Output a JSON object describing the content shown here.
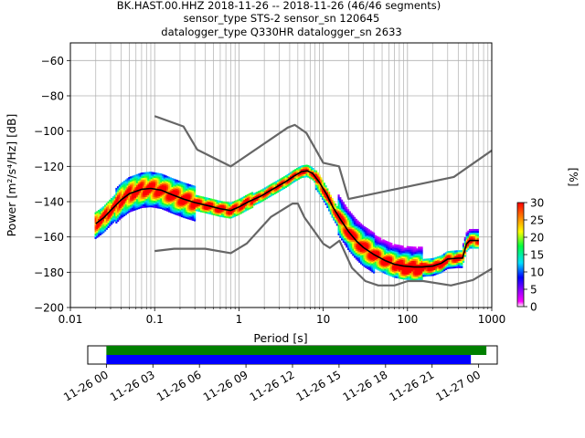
{
  "chart_data": [
    {
      "type": "heatmap",
      "title_lines": [
        "BK.HAST.00.HHZ   2018-11-26 -- 2018-11-26  (46/46 segments)",
        "sensor_type STS-2 sensor_sn 120645",
        "datalogger_type Q330HR datalogger_sn 2633"
      ],
      "xlabel": "Period [s]",
      "ylabel": "Power [m²/s⁴/Hz] [dB]",
      "x_scale": "log",
      "xlim": [
        0.01,
        1000
      ],
      "ylim": [
        -200,
        -50
      ],
      "grid": true,
      "x_ticks": [
        0.01,
        0.1,
        1,
        10,
        100,
        1000
      ],
      "x_tick_labels": [
        "0.01",
        "0.1",
        "1",
        "10",
        "100",
        "1000"
      ],
      "y_ticks": [
        -200,
        -180,
        -160,
        -140,
        -120,
        -100,
        -80,
        -60
      ],
      "y_tick_labels": [
        "−200",
        "−180",
        "−160",
        "−140",
        "−120",
        "−100",
        "−80",
        "−60"
      ],
      "colorbar": {
        "label": "[%]",
        "range": [
          0,
          30
        ],
        "ticks": [
          0,
          5,
          10,
          15,
          20,
          25,
          30
        ],
        "tick_labels": [
          "0",
          "5",
          "10",
          "15",
          "20",
          "25",
          "30"
        ]
      },
      "noise_models": [
        {
          "name": "high",
          "points": [
            [
              0.1,
              -91.5
            ],
            [
              0.22,
              -97.4
            ],
            [
              0.32,
              -110.5
            ],
            [
              0.8,
              -120
            ],
            [
              3.8,
              -98
            ],
            [
              4.6,
              -96.5
            ],
            [
              6.3,
              -101
            ],
            [
              10,
              -118
            ],
            [
              15.4,
              -120
            ],
            [
              20,
              -138.5
            ],
            [
              354.8,
              -126
            ],
            [
              1000,
              -111
            ]
          ]
        },
        {
          "name": "low",
          "points": [
            [
              0.1,
              -168
            ],
            [
              0.17,
              -166.7
            ],
            [
              0.4,
              -166.7
            ],
            [
              0.8,
              -169.2
            ],
            [
              1.24,
              -163.7
            ],
            [
              2.4,
              -148.6
            ],
            [
              4.3,
              -141.1
            ],
            [
              5,
              -141.1
            ],
            [
              6,
              -149
            ],
            [
              10,
              -163.8
            ],
            [
              12,
              -166.2
            ],
            [
              15.6,
              -162.1
            ],
            [
              21.9,
              -177.5
            ],
            [
              31.6,
              -185
            ],
            [
              45,
              -187.5
            ],
            [
              70,
              -187.5
            ],
            [
              101,
              -185
            ],
            [
              154,
              -185
            ],
            [
              328,
              -187.5
            ],
            [
              600,
              -184.4
            ],
            [
              1000,
              -178
            ]
          ]
        }
      ],
      "mean_curve": [
        [
          0.02,
          -152.5
        ],
        [
          0.025,
          -149
        ],
        [
          0.03,
          -145
        ],
        [
          0.04,
          -139
        ],
        [
          0.05,
          -135.5
        ],
        [
          0.07,
          -133
        ],
        [
          0.09,
          -132.5
        ],
        [
          0.12,
          -133.5
        ],
        [
          0.16,
          -136
        ],
        [
          0.22,
          -138.5
        ],
        [
          0.3,
          -140.5
        ],
        [
          0.45,
          -142.5
        ],
        [
          0.6,
          -144
        ],
        [
          0.8,
          -145
        ],
        [
          1.0,
          -143
        ],
        [
          1.3,
          -140
        ],
        [
          1.8,
          -137
        ],
        [
          2.5,
          -133
        ],
        [
          3.5,
          -129
        ],
        [
          4.5,
          -125.5
        ],
        [
          5.5,
          -123
        ],
        [
          6.5,
          -122.5
        ],
        [
          7.5,
          -124
        ],
        [
          9,
          -129
        ],
        [
          11,
          -136
        ],
        [
          13,
          -143
        ],
        [
          16,
          -150
        ],
        [
          20,
          -157
        ],
        [
          25,
          -162.5
        ],
        [
          30,
          -166
        ],
        [
          40,
          -170
        ],
        [
          55,
          -173.5
        ],
        [
          70,
          -175.5
        ],
        [
          90,
          -176.5
        ],
        [
          120,
          -177
        ],
        [
          150,
          -177
        ],
        [
          200,
          -176.5
        ],
        [
          250,
          -175
        ],
        [
          300,
          -172.5
        ],
        [
          400,
          -172
        ],
        [
          450,
          -172
        ],
        [
          500,
          -164
        ],
        [
          550,
          -162
        ],
        [
          700,
          -162
        ]
      ],
      "segment_count": "46/46 segments"
    },
    {
      "type": "timeline",
      "x_ticks": [
        "11-26 00",
        "11-26 03",
        "11-26 06",
        "11-26 09",
        "11-26 12",
        "11-26 15",
        "11-26 18",
        "11-26 21",
        "11-27 00"
      ],
      "x_start_hours": 0,
      "x_end_hours": 24,
      "xlim_hours": [
        -1.2,
        25.2
      ],
      "bars": [
        {
          "color": "#008000",
          "start_hours": 0,
          "end_hours": 24.5
        },
        {
          "color": "#0000ff",
          "start_hours": 0,
          "end_hours": 23.5
        }
      ]
    }
  ]
}
